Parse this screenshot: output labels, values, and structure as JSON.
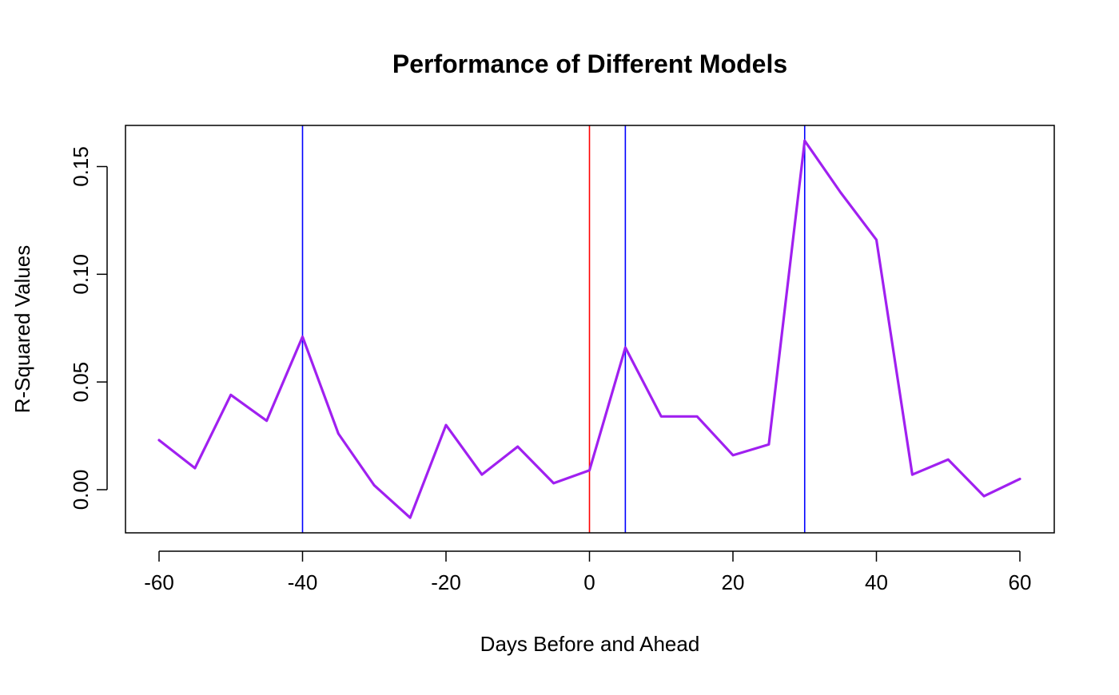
{
  "chart_data": {
    "type": "line",
    "title": "Performance of Different Models",
    "xlabel": "Days Before and Ahead",
    "ylabel": "R-Squared Values",
    "x": [
      -60,
      -55,
      -50,
      -45,
      -40,
      -35,
      -30,
      -25,
      -20,
      -15,
      -10,
      -5,
      0,
      5,
      10,
      15,
      20,
      25,
      30,
      35,
      40,
      45,
      50,
      55,
      60
    ],
    "series": [
      {
        "color": "#a020f0",
        "values": [
          0.023,
          0.01,
          0.044,
          0.032,
          0.071,
          0.026,
          0.002,
          -0.013,
          0.03,
          0.007,
          0.02,
          0.003,
          0.009,
          0.066,
          0.034,
          0.034,
          0.016,
          0.021,
          0.162,
          0.138,
          0.116,
          0.007,
          0.014,
          -0.003,
          0.005
        ]
      }
    ],
    "xlim": [
      -65,
      65
    ],
    "ylim": [
      -0.02,
      0.17
    ],
    "x_ticks": [
      "-60",
      "-40",
      "-20",
      "0",
      "20",
      "40",
      "60"
    ],
    "y_ticks": [
      "0.00",
      "0.05",
      "0.10",
      "0.15"
    ],
    "vertical_lines": [
      {
        "x": -40,
        "color": "#0000ff"
      },
      {
        "x": 0,
        "color": "#ff0000"
      },
      {
        "x": 5,
        "color": "#0000ff"
      },
      {
        "x": 30,
        "color": "#0000ff"
      }
    ],
    "grid": false,
    "legend": "none"
  }
}
